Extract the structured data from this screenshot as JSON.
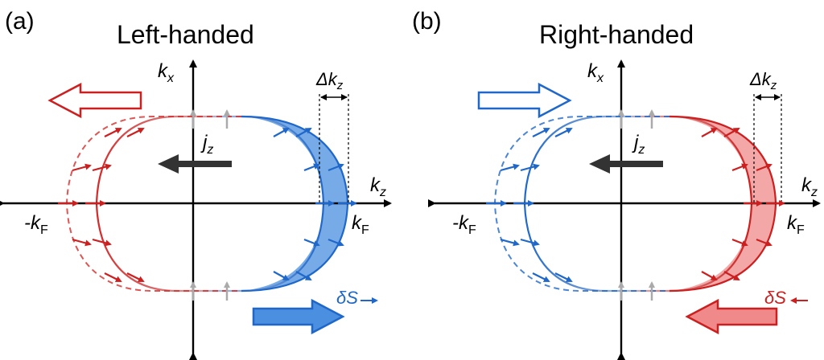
{
  "panels": [
    {
      "id": "a",
      "letter": "(a)",
      "title": "Left-handed",
      "kx": "k",
      "kx_sub": "x",
      "kz": "k",
      "kz_sub": "z",
      "neg_kf": "-k",
      "neg_kf_sub": "F",
      "kf": "k",
      "kf_sub": "F",
      "delta_kz": "Δk",
      "delta_kz_sub": "z",
      "jz": "j",
      "jz_sub": "z",
      "delta_s": "δS",
      "shaded_color": "#4a8fe0",
      "outer_color": "#d42a2a",
      "top_arrow_color": "#cc1f1f",
      "top_arrow_direction": "left",
      "bottom_arrow_color": "#1f67c9",
      "bottom_arrow_direction": "right",
      "delta_s_color": "#1f67c9",
      "delta_s_direction": "right"
    },
    {
      "id": "b",
      "letter": "(b)",
      "title": "Right-handed",
      "kx": "k",
      "kx_sub": "x",
      "kz": "k",
      "kz_sub": "z",
      "neg_kf": "-k",
      "neg_kf_sub": "F",
      "kf": "k",
      "kf_sub": "F",
      "delta_kz": "Δk",
      "delta_kz_sub": "z",
      "jz": "j",
      "jz_sub": "z",
      "delta_s": "δS",
      "shaded_color": "#f08a8a",
      "outer_color": "#1f67c9",
      "top_arrow_color": "#1f67c9",
      "top_arrow_direction": "right",
      "bottom_arrow_color": "#cc1f1f",
      "bottom_arrow_direction": "left",
      "delta_s_color": "#cc1f1f",
      "delta_s_direction": "left"
    }
  ]
}
